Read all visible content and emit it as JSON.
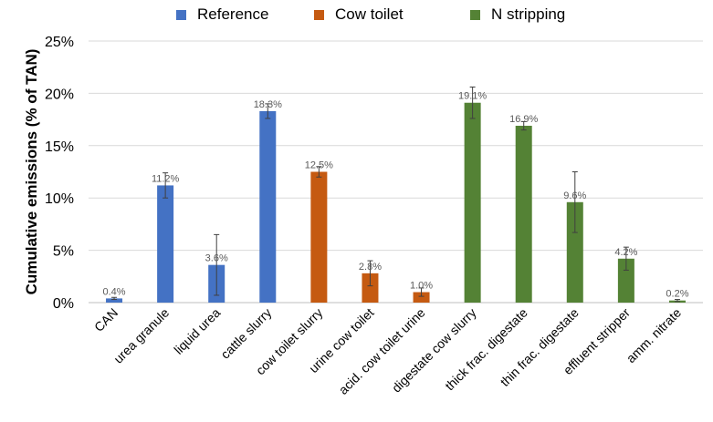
{
  "chart_data": {
    "type": "bar",
    "ylabel": "Cumulative emissions (% of TAN)",
    "ylim": [
      0,
      25
    ],
    "yticks": [
      0,
      5,
      10,
      15,
      20,
      25
    ],
    "ytick_labels": [
      "0%",
      "5%",
      "10%",
      "15%",
      "20%",
      "25%"
    ],
    "grid": true,
    "legend_position": "top",
    "legend": [
      {
        "name": "Reference",
        "color": "#4472C4"
      },
      {
        "name": "Cow toilet",
        "color": "#C55A11"
      },
      {
        "name": "N stripping",
        "color": "#548235"
      }
    ],
    "categories": [
      "CAN",
      "urea granule",
      "liquid urea",
      "cattle slurry",
      "cow toilet slurry",
      "urine cow toilet",
      "acid. cow toilet urine",
      "digestate cow slurry",
      "thick frac. digestate",
      "thin frac. digestate",
      "effluent stripper",
      "amm. nitrate"
    ],
    "values": [
      0.4,
      11.2,
      3.6,
      18.3,
      12.5,
      2.8,
      1.0,
      19.1,
      16.9,
      9.6,
      4.2,
      0.2
    ],
    "value_labels": [
      "0.4%",
      "11.2%",
      "3.6%",
      "18.3%",
      "12.5%",
      "2.8%",
      "1.0%",
      "19.1%",
      "16.9%",
      "9.6%",
      "4.2%",
      "0.2%"
    ],
    "groups": [
      0,
      0,
      0,
      0,
      1,
      1,
      1,
      2,
      2,
      2,
      2,
      2
    ],
    "error": [
      0.1,
      1.2,
      2.9,
      0.7,
      0.5,
      1.2,
      0.4,
      1.5,
      0.4,
      2.9,
      1.1,
      0.1
    ]
  }
}
